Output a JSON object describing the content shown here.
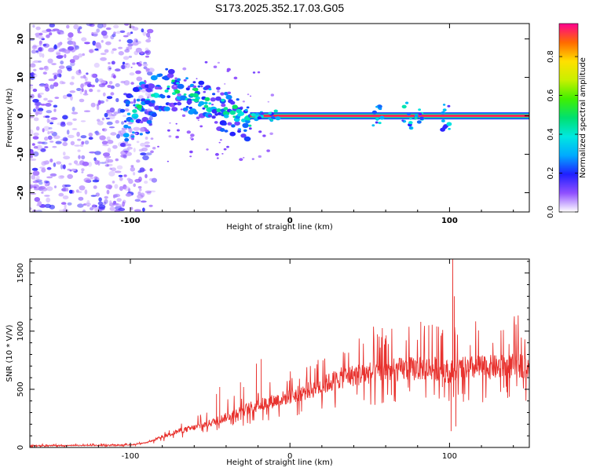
{
  "title": "S173.2025.352.17.03.G05",
  "chart_data": [
    {
      "type": "heatmap",
      "name": "spectrogram",
      "xlabel": "Height of straight line (km)",
      "ylabel": "Frequency (Hz)",
      "xlim": [
        -163,
        150
      ],
      "ylim": [
        -25,
        24
      ],
      "x_ticks": [
        -100,
        0,
        100
      ],
      "y_ticks": [
        20,
        10,
        0,
        -10,
        -20
      ],
      "colorbar": {
        "label": "Normalized spectral amplitude",
        "ticks": [
          "0.0",
          "0.2",
          "0.4",
          "0.6",
          "0.8"
        ],
        "tick_values": [
          0.0,
          0.2,
          0.4,
          0.6,
          0.8
        ],
        "range": [
          0,
          0.97
        ]
      },
      "features": {
        "noise_region_x": [
          -163,
          -90
        ],
        "chirp_start": [
          -105,
          -2
        ],
        "chirp_peak": [
          -85,
          8
        ],
        "carrier_frequency": 0,
        "carrier_start_x": -25,
        "carrier_end_x": 150
      }
    },
    {
      "type": "line",
      "name": "snr",
      "xlabel": "Height of straight line (km)",
      "ylabel": "SNR (10 * V/V)",
      "xlim": [
        -163,
        150
      ],
      "ylim": [
        0,
        1620
      ],
      "x_ticks": [
        -100,
        0,
        100
      ],
      "y_ticks": [
        0,
        500,
        1000,
        1500
      ],
      "color": "#e8322e",
      "envelope": {
        "x": [
          -163,
          -120,
          -100,
          -90,
          -80,
          -70,
          -60,
          -50,
          -40,
          -30,
          -20,
          -10,
          0,
          10,
          20,
          30,
          40,
          50,
          60,
          70,
          80,
          90,
          95,
          100,
          105,
          110,
          120,
          130,
          140,
          150
        ],
        "y": [
          15,
          18,
          22,
          40,
          90,
          140,
          170,
          210,
          260,
          320,
          360,
          400,
          440,
          480,
          530,
          590,
          620,
          640,
          660,
          670,
          680,
          680,
          670,
          650,
          660,
          680,
          690,
          690,
          700,
          710
        ]
      },
      "spikes": [
        {
          "x": 102,
          "y": 1620
        },
        {
          "x": 101,
          "y": 140
        },
        {
          "x": 103,
          "y": 1300
        },
        {
          "x": 104,
          "y": 180
        },
        {
          "x": 82,
          "y": 1080
        },
        {
          "x": 87,
          "y": 1050
        },
        {
          "x": 92,
          "y": 1040
        },
        {
          "x": -18,
          "y": 760
        },
        {
          "x": -21,
          "y": 720
        },
        {
          "x": -44,
          "y": 520
        },
        {
          "x": -46,
          "y": 460
        },
        {
          "x": -31,
          "y": 560
        },
        {
          "x": 60,
          "y": 920
        },
        {
          "x": 113,
          "y": 880
        }
      ]
    }
  ]
}
